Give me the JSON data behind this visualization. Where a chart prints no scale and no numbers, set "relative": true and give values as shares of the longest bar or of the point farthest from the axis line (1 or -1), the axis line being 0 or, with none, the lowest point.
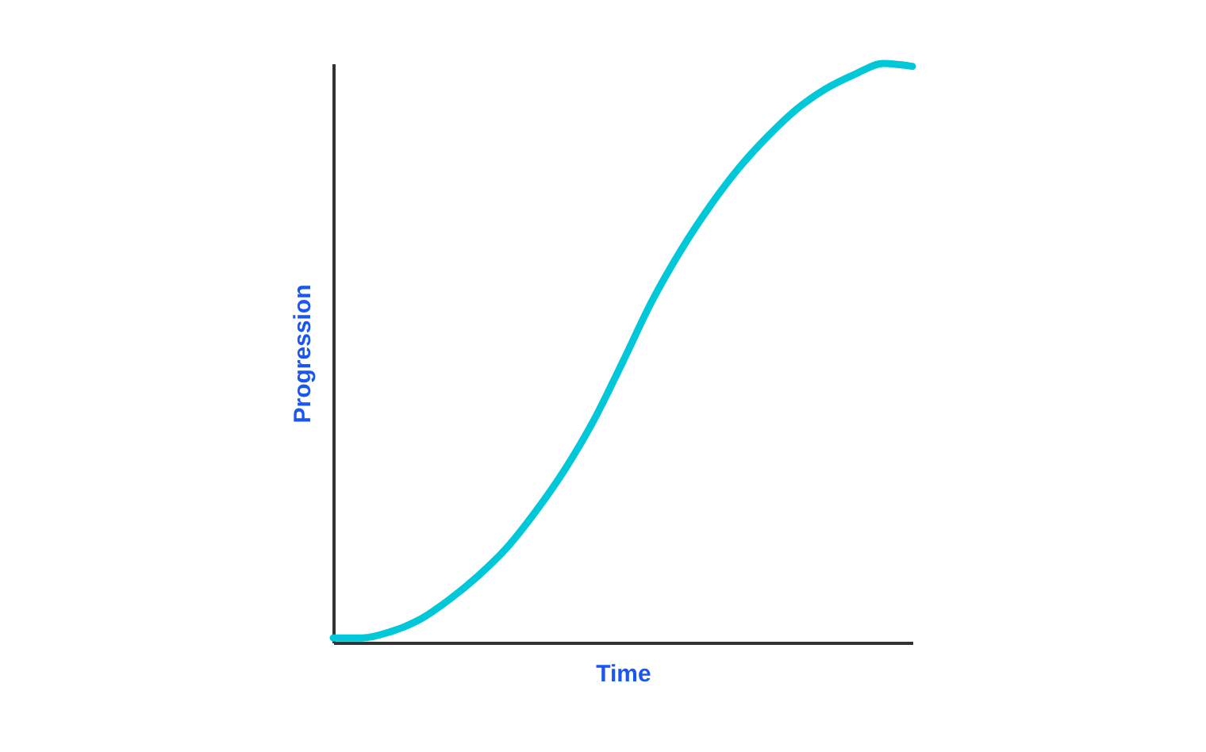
{
  "chart_data": {
    "type": "line",
    "xlabel": "Time",
    "ylabel": "Progression",
    "relative": true,
    "categories": [
      null,
      null,
      null,
      null,
      null,
      null,
      null,
      null,
      null,
      null,
      null,
      null,
      null,
      null,
      null,
      null,
      null,
      null,
      null,
      null,
      null
    ],
    "series": [
      {
        "color": "#00c8d8",
        "values": [
          0.008,
          0.008,
          0.019,
          0.04,
          0.074,
          0.115,
          0.164,
          0.227,
          0.299,
          0.384,
          0.485,
          0.589,
          0.677,
          0.753,
          0.819,
          0.874,
          0.921,
          0.956,
          0.981,
          1.0,
          0.995
        ]
      }
    ],
    "grid": false,
    "marker": "none",
    "line_style": "solid"
  }
}
